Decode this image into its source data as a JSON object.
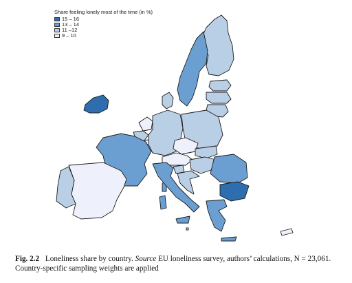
{
  "legend": {
    "title": "Share feeling lonely most of the time (in %)",
    "items": [
      {
        "label": "15 – 16",
        "color": "#2f6eae"
      },
      {
        "label": "13 – 14",
        "color": "#6b9fd1"
      },
      {
        "label": "11 –12",
        "color": "#b9cfe5"
      },
      {
        "label": "9 – 10",
        "color": "#eef1fb"
      }
    ]
  },
  "colors": {
    "border": "#1a1a1a",
    "background": "#ffffff"
  },
  "caption": {
    "fig_label": "Fig. 2.2",
    "text_before_source": "Loneliness share by country.",
    "source_word": "Source",
    "text_after_source": "EU loneliness survey, authors’ calculations, N = 23,061. Country-specific sampling weights are applied"
  },
  "countries": [
    {
      "name": "Ireland",
      "class": "15 – 16"
    },
    {
      "name": "Bulgaria",
      "class": "15 – 16"
    },
    {
      "name": "Sweden",
      "class": "13 – 14"
    },
    {
      "name": "France",
      "class": "13 – 14"
    },
    {
      "name": "Romania",
      "class": "13 – 14"
    },
    {
      "name": "Greece",
      "class": "13 – 14"
    },
    {
      "name": "Italy",
      "class": "13 – 14"
    },
    {
      "name": "Portugal",
      "class": "11 –12"
    },
    {
      "name": "Finland",
      "class": "11 –12"
    },
    {
      "name": "Estonia",
      "class": "11 –12"
    },
    {
      "name": "Latvia",
      "class": "11 –12"
    },
    {
      "name": "Lithuania",
      "class": "11 –12"
    },
    {
      "name": "Poland",
      "class": "11 –12"
    },
    {
      "name": "Germany",
      "class": "11 –12"
    },
    {
      "name": "Belgium",
      "class": "11 –12"
    },
    {
      "name": "Hungary",
      "class": "11 –12"
    },
    {
      "name": "Slovakia",
      "class": "11 –12"
    },
    {
      "name": "Croatia",
      "class": "11 –12"
    },
    {
      "name": "Denmark",
      "class": "11 –12"
    },
    {
      "name": "Slovenia",
      "class": "11 –12"
    },
    {
      "name": "Spain",
      "class": "9 – 10"
    },
    {
      "name": "Austria",
      "class": "9 – 10"
    },
    {
      "name": "Czechia",
      "class": "9 – 10"
    },
    {
      "name": "Netherlands",
      "class": "9 – 10"
    },
    {
      "name": "Luxembourg",
      "class": "9 – 10"
    },
    {
      "name": "Cyprus",
      "class": "9 – 10"
    },
    {
      "name": "Malta",
      "class": "9 – 10"
    }
  ]
}
